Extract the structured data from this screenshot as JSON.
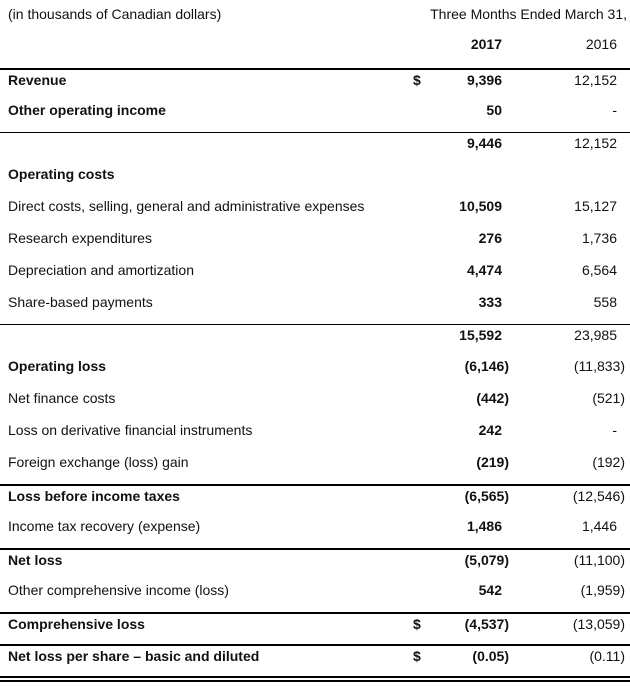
{
  "meta": {
    "units_note": "(in thousands of Canadian dollars)",
    "period_header": "Three Months Ended March 31,",
    "col_2017": "2017",
    "col_2016": "2016"
  },
  "rows": [
    {
      "label": "Revenue",
      "label_bold": true,
      "dollar": "$",
      "v2017": "9,396",
      "v2016": "12,152",
      "border_top": "thick"
    },
    {
      "label": "Other operating income",
      "label_bold": true,
      "dollar": "",
      "v2017": "50",
      "v2016": "-",
      "border_top": "none"
    },
    {
      "label": "",
      "label_bold": false,
      "dollar": "",
      "v2017": "9,446",
      "v2016": "12,152",
      "border_top": "thin"
    },
    {
      "label": "Operating costs",
      "label_bold": true,
      "dollar": "",
      "v2017": "",
      "v2016": "",
      "border_top": "none"
    },
    {
      "label": "Direct costs, selling, general and administrative expenses",
      "label_bold": false,
      "dollar": "",
      "v2017": "10,509",
      "v2016": "15,127",
      "border_top": "none"
    },
    {
      "label": "Research expenditures",
      "label_bold": false,
      "dollar": "",
      "v2017": "276",
      "v2016": "1,736",
      "border_top": "none"
    },
    {
      "label": "Depreciation and amortization",
      "label_bold": false,
      "dollar": "",
      "v2017": "4,474",
      "v2016": "6,564",
      "border_top": "none"
    },
    {
      "label": "Share-based payments",
      "label_bold": false,
      "dollar": "",
      "v2017": "333",
      "v2016": "558",
      "border_top": "none"
    },
    {
      "label": "",
      "label_bold": false,
      "dollar": "",
      "v2017": "15,592",
      "v2016": "23,985",
      "border_top": "thin"
    },
    {
      "label": "Operating loss",
      "label_bold": true,
      "dollar": "",
      "v2017": "(6,146)",
      "v2016": "(11,833)",
      "border_top": "none"
    },
    {
      "label": "Net finance costs",
      "label_bold": false,
      "dollar": "",
      "v2017": "(442)",
      "v2016": "(521)",
      "border_top": "none"
    },
    {
      "label": "Loss on derivative financial instruments",
      "label_bold": false,
      "dollar": "",
      "v2017": "242",
      "v2016": "-",
      "border_top": "none"
    },
    {
      "label": "Foreign exchange (loss) gain",
      "label_bold": false,
      "dollar": "",
      "v2017": "(219)",
      "v2016": "(192)",
      "border_top": "none"
    },
    {
      "label": "Loss before income taxes",
      "label_bold": true,
      "dollar": "",
      "v2017": "(6,565)",
      "v2016": "(12,546)",
      "border_top": "medium"
    },
    {
      "label": "Income tax recovery (expense)",
      "label_bold": false,
      "dollar": "",
      "v2017": "1,486",
      "v2016": "1,446",
      "border_top": "none"
    },
    {
      "label": "Net loss",
      "label_bold": true,
      "dollar": "",
      "v2017": "(5,079)",
      "v2016": "(11,100)",
      "border_top": "medium"
    },
    {
      "label": "Other comprehensive income (loss)",
      "label_bold": false,
      "dollar": "",
      "v2017": "542",
      "v2016": "(1,959)",
      "border_top": "none"
    },
    {
      "label": "Comprehensive loss",
      "label_bold": true,
      "dollar": "$",
      "v2017": "(4,537)",
      "v2016": "(13,059)",
      "border_top": "medium"
    },
    {
      "label": "Net loss per share – basic and diluted",
      "label_bold": true,
      "dollar": "$",
      "v2017": "(0.05)",
      "v2016": "(0.11)",
      "border_top": "medium"
    }
  ],
  "colors": {
    "text": "#111111",
    "rule": "#000000",
    "background": "#ffffff"
  }
}
